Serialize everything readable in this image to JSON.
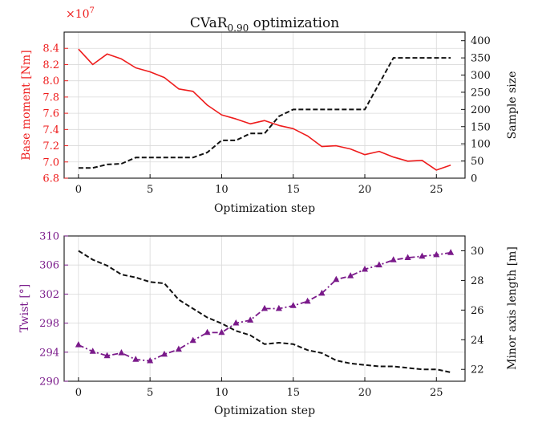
{
  "colors": {
    "red": "#ee1c1c",
    "purple": "#7a1a8a",
    "black": "#111111",
    "grid": "#d9d9d9"
  },
  "chart_data": [
    {
      "type": "line",
      "title_main": "CVaR",
      "title_sub": "0.90",
      "title_rest": " optimization",
      "xlabel": "Optimization step",
      "ylabel_left": "Base moment [Nm]",
      "ylabel_right": "Sample size",
      "offset_text": "×10",
      "offset_exp": "7",
      "xlim": [
        -1,
        27
      ],
      "ylim_left": [
        6.8,
        8.6
      ],
      "ylim_right": [
        0,
        425
      ],
      "x_ticks": [
        0,
        5,
        10,
        15,
        20,
        25
      ],
      "y_left_ticks": [
        "6.8",
        "7.0",
        "7.2",
        "7.4",
        "7.6",
        "7.8",
        "8.0",
        "8.2",
        "8.4"
      ],
      "y_right_ticks": [
        "0",
        "50",
        "100",
        "150",
        "200",
        "250",
        "300",
        "350",
        "400"
      ],
      "series": [
        {
          "name": "Base moment",
          "axis": "left",
          "style": "solid",
          "x": [
            0,
            1,
            2,
            3,
            4,
            5,
            6,
            7,
            8,
            9,
            10,
            11,
            12,
            13,
            14,
            15,
            16,
            17,
            18,
            19,
            20,
            21,
            22,
            23,
            24,
            25,
            26
          ],
          "values": [
            8.39,
            8.2,
            8.33,
            8.27,
            8.16,
            8.11,
            8.04,
            7.9,
            7.87,
            7.7,
            7.58,
            7.53,
            7.47,
            7.51,
            7.45,
            7.41,
            7.32,
            7.19,
            7.2,
            7.16,
            7.09,
            7.13,
            7.06,
            7.01,
            7.02,
            6.9,
            6.96
          ]
        },
        {
          "name": "Sample size",
          "axis": "right",
          "style": "dashed",
          "x": [
            0,
            1,
            2,
            3,
            4,
            5,
            6,
            7,
            8,
            9,
            10,
            11,
            12,
            13,
            14,
            15,
            16,
            17,
            18,
            19,
            20,
            21,
            22,
            23,
            24,
            25,
            26
          ],
          "values": [
            30,
            30,
            40,
            42,
            60,
            60,
            60,
            60,
            60,
            75,
            110,
            110,
            130,
            130,
            180,
            200,
            200,
            200,
            200,
            200,
            200,
            275,
            350,
            350,
            350,
            350,
            350
          ]
        }
      ]
    },
    {
      "type": "line",
      "xlabel": "Optimization step",
      "ylabel_left": "Twist [°]",
      "ylabel_right": "Minor axis length [m]",
      "xlim": [
        -1,
        27
      ],
      "ylim_left": [
        290,
        310
      ],
      "ylim_right": [
        21.2,
        31.0
      ],
      "x_ticks": [
        0,
        5,
        10,
        15,
        20,
        25
      ],
      "y_left_ticks": [
        "290",
        "294",
        "298",
        "302",
        "306",
        "310"
      ],
      "y_right_ticks": [
        "22",
        "24",
        "26",
        "28",
        "30"
      ],
      "series": [
        {
          "name": "Twist",
          "axis": "left",
          "style": "dashdot-triangle",
          "x": [
            0,
            1,
            2,
            3,
            4,
            5,
            6,
            7,
            8,
            9,
            10,
            11,
            12,
            13,
            14,
            15,
            16,
            17,
            18,
            19,
            20,
            21,
            22,
            23,
            24,
            25,
            26
          ],
          "values": [
            295.0,
            294.1,
            293.5,
            293.9,
            293.0,
            292.8,
            293.7,
            294.4,
            295.6,
            296.7,
            296.7,
            298.0,
            298.4,
            300.0,
            300.0,
            300.4,
            301.0,
            302.1,
            304.0,
            304.5,
            305.4,
            306.0,
            306.7,
            307.0,
            307.2,
            307.4,
            307.7
          ]
        },
        {
          "name": "Minor axis length",
          "axis": "right",
          "style": "dashed",
          "x": [
            0,
            1,
            2,
            3,
            4,
            5,
            6,
            7,
            8,
            9,
            10,
            11,
            12,
            13,
            14,
            15,
            16,
            17,
            18,
            19,
            20,
            21,
            22,
            23,
            24,
            25,
            26
          ],
          "values": [
            30.0,
            29.4,
            29.0,
            28.4,
            28.2,
            27.9,
            27.8,
            26.7,
            26.1,
            25.5,
            25.1,
            24.6,
            24.3,
            23.7,
            23.8,
            23.7,
            23.3,
            23.1,
            22.6,
            22.4,
            22.3,
            22.2,
            22.2,
            22.1,
            22.0,
            22.0,
            21.8
          ]
        }
      ]
    }
  ]
}
